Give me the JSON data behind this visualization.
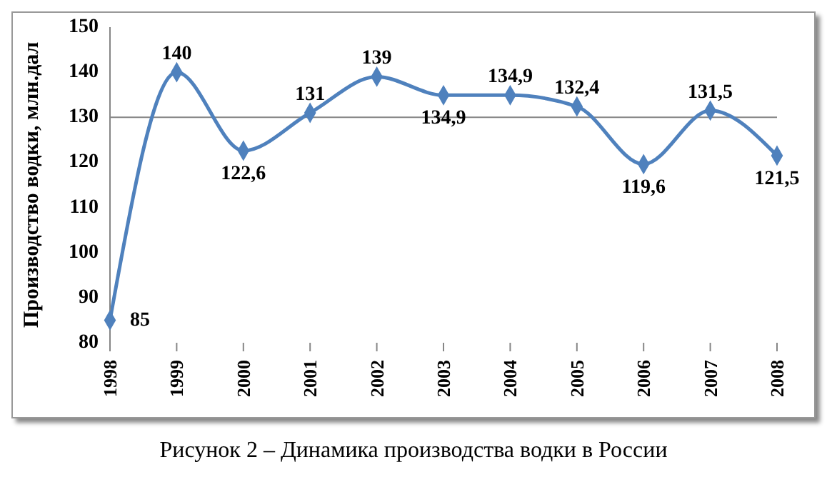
{
  "chart_data": {
    "type": "line",
    "title": "Рисунок 2 – Динамика производства водки в России",
    "ylabel": "Производство водки, млн.дал",
    "categories": [
      "1998",
      "1999",
      "2000",
      "2001",
      "2002",
      "2003",
      "2004",
      "2005",
      "2006",
      "2007",
      "2008"
    ],
    "series": [
      {
        "color": "#4f81bd",
        "values": [
          85,
          140,
          122.6,
          131,
          139,
          134.9,
          134.9,
          132.4,
          119.6,
          131.5,
          121.5
        ],
        "value_labels": [
          "85",
          "140",
          "122,6",
          "131",
          "139",
          "134,9",
          "134,9",
          "132,4",
          "119,6",
          "131,5",
          "121,5"
        ]
      }
    ],
    "ylim": [
      80,
      150
    ],
    "yticks": [
      80,
      90,
      100,
      110,
      120,
      130,
      140,
      150
    ],
    "grid": false,
    "marker": "diamond",
    "line_style": "solid",
    "ref_lines": [
      {
        "axis": "y",
        "value": 130,
        "color": "#868686"
      }
    ]
  }
}
